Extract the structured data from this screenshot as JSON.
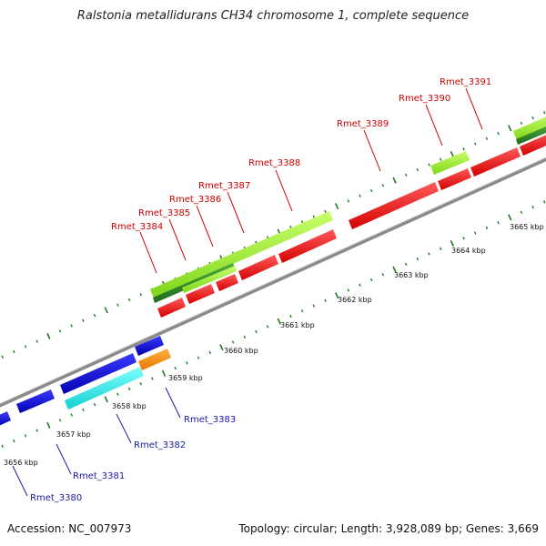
{
  "header": {
    "title": "Ralstonia metallidurans CH34 chromosome 1, complete sequence"
  },
  "footer": {
    "accession": "Accession: NC_007973",
    "summary": "Topology: circular; Length: 3,928,089 bp; Genes: 3,669"
  },
  "colors": {
    "backbone": "#7a7a7a",
    "forward_tick": "#1f7a1f",
    "reverse_tick": "#1f7a1f",
    "forward_label": "#cc0000",
    "reverse_label": "#1a1aa6"
  },
  "kbp_ticks": [
    "3656 kbp",
    "3657 kbp",
    "3658 kbp",
    "3659 kbp",
    "3660 kbp",
    "3661 kbp",
    "3662 kbp",
    "3663 kbp",
    "3664 kbp",
    "3665 kbp"
  ],
  "forward_genes": [
    "Rmet_3384",
    "Rmet_3385",
    "Rmet_3386",
    "Rmet_3387",
    "Rmet_3388",
    "Rmet_3389",
    "Rmet_3390",
    "Rmet_3391"
  ],
  "reverse_genes": [
    "Rmet_3380",
    "Rmet_3381",
    "Rmet_3382",
    "Rmet_3383"
  ]
}
